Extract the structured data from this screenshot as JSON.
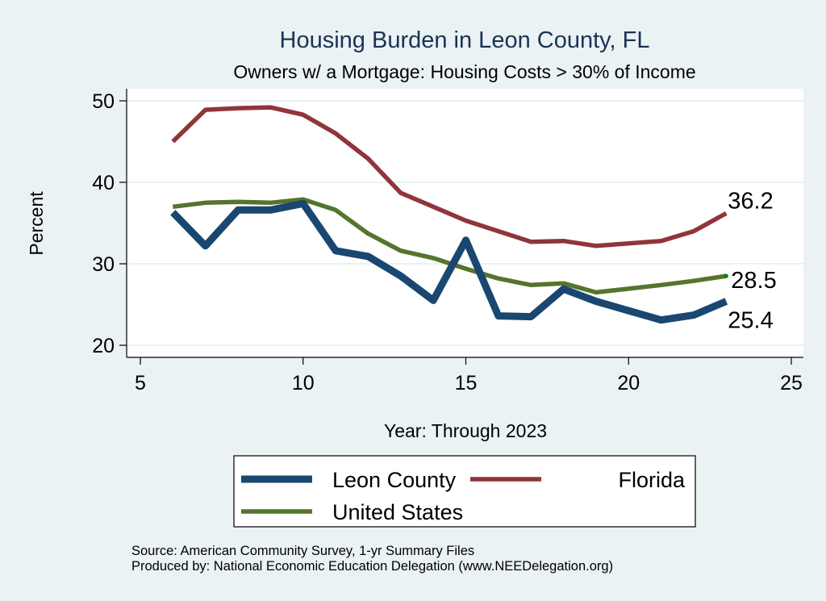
{
  "chart_data": {
    "type": "line",
    "title": "Housing Burden in Leon County, FL",
    "subtitle": "Owners w/ a Mortgage: Housing Costs > 30% of Income",
    "xlabel": "Year: Through 2023",
    "ylabel": "Percent",
    "xlim": [
      4.6,
      25.4
    ],
    "ylim": [
      18.5,
      51.5
    ],
    "xticks": [
      5,
      10,
      15,
      20,
      25
    ],
    "yticks": [
      20,
      30,
      40,
      50
    ],
    "grid": true,
    "legend_position": "bottom",
    "x": [
      6,
      7,
      8,
      9,
      10,
      11,
      12,
      13,
      14,
      15,
      16,
      17,
      18,
      19,
      21,
      22,
      23
    ],
    "series": [
      {
        "name": "Leon County",
        "color": "#1a476f",
        "values": [
          36.3,
          32.2,
          36.6,
          36.6,
          37.4,
          31.6,
          30.9,
          28.5,
          25.5,
          32.9,
          23.6,
          23.5,
          26.9,
          25.4,
          23.1,
          23.7,
          25.4
        ],
        "end_label": "25.4"
      },
      {
        "name": "Florida",
        "color": "#90353b",
        "values": [
          45.0,
          48.9,
          49.1,
          49.2,
          48.3,
          46.0,
          42.9,
          38.7,
          37.0,
          35.3,
          34.0,
          32.7,
          32.8,
          32.2,
          32.8,
          34.0,
          36.2
        ],
        "end_label": "36.2"
      },
      {
        "name": "United States",
        "color": "#55752f",
        "values": [
          37.0,
          37.5,
          37.6,
          37.5,
          37.9,
          36.6,
          33.7,
          31.6,
          30.7,
          29.4,
          28.2,
          27.4,
          27.6,
          26.5,
          27.4,
          27.9,
          28.5
        ],
        "end_label": "28.5",
        "end_marker_color": "#008000"
      }
    ],
    "legend": [
      {
        "name": "Leon County",
        "color": "#1a476f"
      },
      {
        "name": "Florida",
        "color": "#90353b"
      },
      {
        "name": "United States",
        "color": "#55752f"
      }
    ],
    "notes": [
      "Source: American Community Survey, 1-yr Summary Files",
      "Produced by: National Economic Education Delegation (www.NEEDelegation.org)"
    ]
  }
}
